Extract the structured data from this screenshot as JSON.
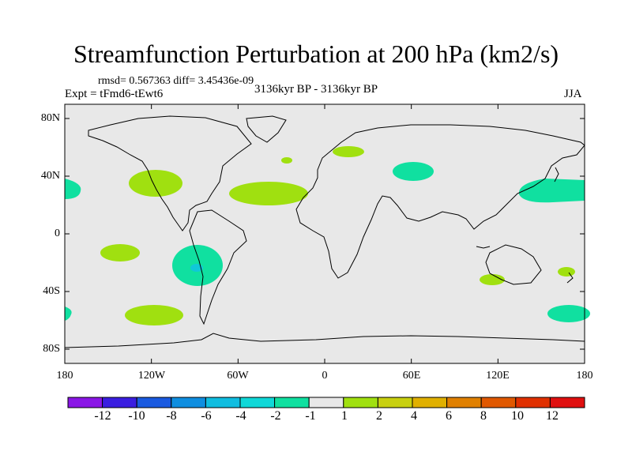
{
  "title": "Streamfunction Perturbation at 200 hPa (km2/s)",
  "stats": "rmsd= 0.567363 diff= 3.45436e-09",
  "experiment": "Expt = tFmd6-tEwt6",
  "period": "3136kyr BP - 3136kyr BP",
  "season": "JJA",
  "map": {
    "lon_ticks": [
      "180",
      "120W",
      "60W",
      "0",
      "60E",
      "120E",
      "180"
    ],
    "lat_ticks": [
      "80N",
      "40N",
      "0",
      "40S",
      "80S"
    ],
    "land_fill": "#e8e8e8",
    "coast_color": "#000000"
  },
  "colorbar": {
    "labels": [
      "-12",
      "-10",
      "-8",
      "-6",
      "-4",
      "-2",
      "-1",
      "1",
      "2",
      "4",
      "6",
      "8",
      "10",
      "12"
    ],
    "colors": [
      "#8a16e6",
      "#3a1ee0",
      "#1a5ae0",
      "#0f8ee0",
      "#10bde0",
      "#10d8d8",
      "#10e0a0",
      "#e8e8e8",
      "#a0e010",
      "#c8d010",
      "#e0b000",
      "#e08000",
      "#e05800",
      "#e03000",
      "#e01010"
    ]
  }
}
